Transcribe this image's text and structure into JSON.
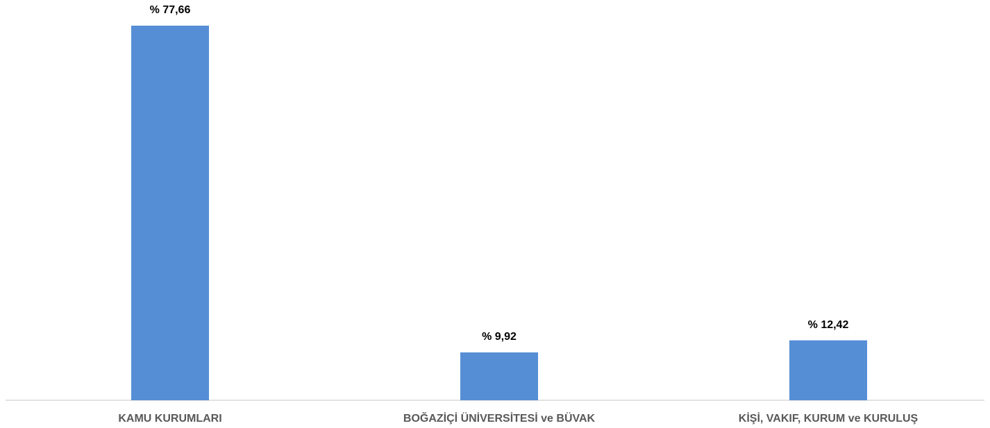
{
  "chart_data": {
    "type": "bar",
    "categories": [
      "KAMU KURUMLARI",
      "BOĞAZİÇİ ÜNİVERSİTESİ ve BÜVAK",
      "KİŞİ, VAKIF, KURUM ve KURULUŞ"
    ],
    "values": [
      77.66,
      9.92,
      12.42
    ],
    "value_labels": [
      "% 77,66",
      "% 9,92",
      "% 12,42"
    ],
    "color": "#558ed5"
  }
}
